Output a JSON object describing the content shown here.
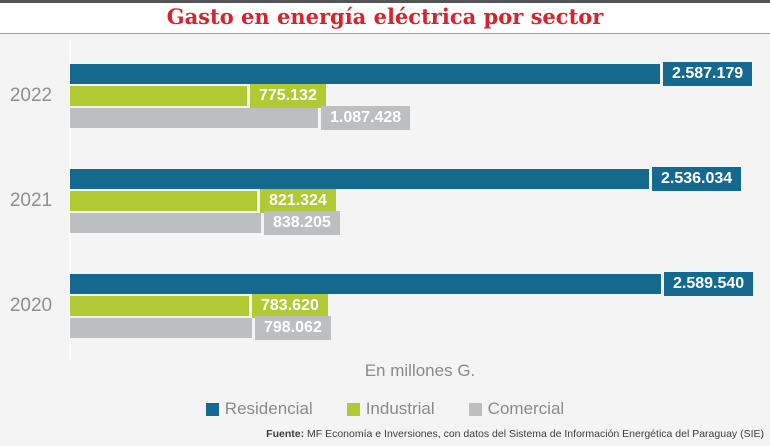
{
  "title": "Gasto en energía eléctrica por sector",
  "chart_data": {
    "type": "bar",
    "orientation": "horizontal",
    "title": "Gasto en energía eléctrica por sector",
    "unit_label": "En millones G.",
    "categories": [
      "2022",
      "2021",
      "2020"
    ],
    "series": [
      {
        "name": "Residencial",
        "color": "#15698f",
        "values": [
          2587179,
          2536034,
          2589540
        ],
        "labels": [
          "2.587.179",
          "2.536.034",
          "2.589.540"
        ]
      },
      {
        "name": "Industrial",
        "color": "#b1c933",
        "values": [
          775132,
          821324,
          783620
        ],
        "labels": [
          "775.132",
          "821.324",
          "783.620"
        ]
      },
      {
        "name": "Comercial",
        "color": "#bdbec0",
        "values": [
          1087428,
          838205,
          798062
        ],
        "labels": [
          "1.087.428",
          "838.205",
          "798.062"
        ]
      }
    ],
    "xlim": [
      0,
      2589540
    ],
    "grid": false,
    "legend_position": "bottom"
  },
  "source": {
    "prefix": "Fuente:",
    "text": " MF Economía e Inversiones, con datos del Sistema de Información Energética del Paraguay (SIE)"
  },
  "colors": {
    "background": "#f4f4f5",
    "title": "#d8232b",
    "top_rule": "#535456",
    "axis_line": "#fdfdfd",
    "text_gray": "#8a8a8a",
    "source_text": "#3d3d3d"
  }
}
